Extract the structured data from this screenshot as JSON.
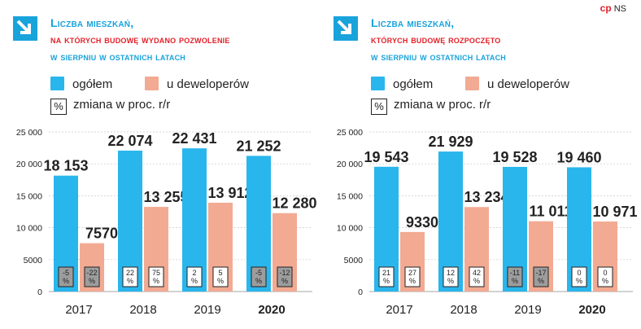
{
  "copyright": {
    "logo": "cp",
    "author": "NS"
  },
  "legend": {
    "total_label": "ogółem",
    "dev_label": "u deweloperów",
    "change_label": "zmiana w proc. r/r",
    "change_symbol": "%"
  },
  "colors": {
    "total": "#29b6ec",
    "developers": "#f2aa92",
    "title_blue": "#19a3db",
    "title_red": "#e41f28",
    "badge_neg": "#9d9d9d",
    "badge_pos": "#ffffff"
  },
  "panels": [
    {
      "title_line1": "Liczba mieszkań,",
      "title_line2": "na których budowę wydano pozwolenie",
      "title_line3": "w sierpniu w ostatnich latach"
    },
    {
      "title_line1": "Liczba mieszkań,",
      "title_line2": "których budowę rozpoczęto",
      "title_line3": "w sierpniu w ostatnich latach"
    }
  ],
  "chart_data": [
    {
      "type": "bar",
      "title": "Liczba mieszkań, na których budowę wydano pozwolenie w sierpniu w ostatnich latach",
      "categories": [
        "2017",
        "2018",
        "2019",
        "2020"
      ],
      "bold_category": "2020",
      "ylim": [
        0,
        25000
      ],
      "yticks": [
        0,
        5000,
        10000,
        15000,
        20000,
        25000
      ],
      "ytick_labels": [
        "0",
        "5000",
        "10 000",
        "15 000",
        "20 000",
        "25 000"
      ],
      "grid": true,
      "series": [
        {
          "name": "ogółem",
          "values": [
            18153,
            22074,
            22431,
            21252
          ],
          "labels": [
            "18 153",
            "22 074",
            "22 431",
            "21 252"
          ],
          "change_pct": [
            "-5",
            "22",
            "2",
            "-5"
          ]
        },
        {
          "name": "u deweloperów",
          "values": [
            7570,
            13255,
            13912,
            12280
          ],
          "labels": [
            "7570",
            "13 255",
            "13 912",
            "12 280"
          ],
          "change_pct": [
            "-22",
            "75",
            "5",
            "-12"
          ]
        }
      ]
    },
    {
      "type": "bar",
      "title": "Liczba mieszkań, których budowę rozpoczęto w sierpniu w ostatnich latach",
      "categories": [
        "2017",
        "2018",
        "2019",
        "2020"
      ],
      "bold_category": "2020",
      "ylim": [
        0,
        25000
      ],
      "yticks": [
        0,
        5000,
        10000,
        15000,
        20000,
        25000
      ],
      "ytick_labels": [
        "0",
        "5000",
        "10 000",
        "15 000",
        "20 000",
        "25 000"
      ],
      "grid": true,
      "series": [
        {
          "name": "ogółem",
          "values": [
            19543,
            21929,
            19528,
            19460
          ],
          "labels": [
            "19 543",
            "21 929",
            "19 528",
            "19 460"
          ],
          "change_pct": [
            "21",
            "12",
            "-11",
            "0"
          ]
        },
        {
          "name": "u deweloperów",
          "values": [
            9330,
            13234,
            11011,
            10971
          ],
          "labels": [
            "9330",
            "13 234",
            "11 011",
            "10 971"
          ],
          "change_pct": [
            "27",
            "42",
            "-17",
            "0"
          ]
        }
      ]
    }
  ]
}
